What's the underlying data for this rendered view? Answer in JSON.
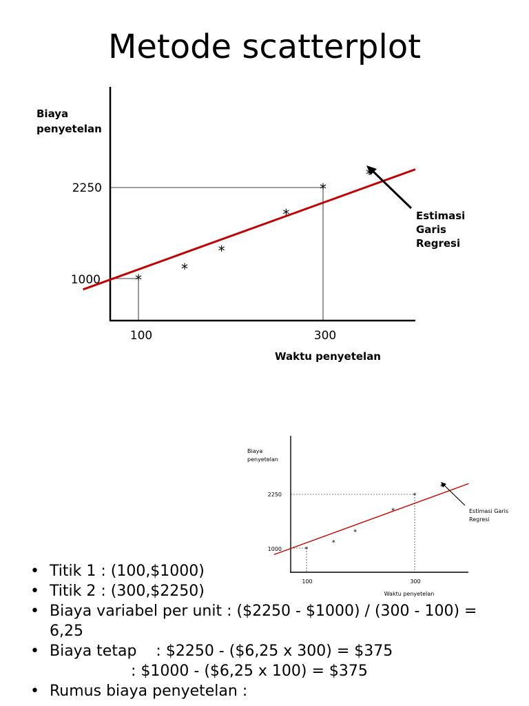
{
  "slide": {
    "title": "Metode scatterplot"
  },
  "chart_data": [
    {
      "type": "scatter",
      "ylabel": "Biaya penyetelan",
      "ylabel_lines": [
        "Biaya",
        "penyetelan"
      ],
      "xlabel": "Waktu penyetelan",
      "x_ticks": [
        "100",
        "300"
      ],
      "y_ticks": [
        "2250",
        "1000"
      ],
      "points": [
        [
          100,
          1000
        ],
        [
          150,
          1150
        ],
        [
          190,
          1400
        ],
        [
          260,
          1900
        ],
        [
          300,
          2250
        ],
        [
          350,
          2450
        ]
      ],
      "regression_line": {
        "from": [
          40,
          850
        ],
        "to": [
          400,
          2500
        ]
      },
      "annotation": "Estimasi Garis Regresi",
      "annotation_lines": [
        "Estimasi",
        "Garis",
        "Regresi"
      ],
      "line_color": "#c00000"
    },
    {
      "type": "scatter",
      "ylabel_lines": [
        "Biaya",
        "penyetelan"
      ],
      "xlabel": "Waktu penyetelan",
      "x_ticks": [
        "100",
        "300"
      ],
      "y_ticks": [
        "2250",
        "1000"
      ],
      "annotation_lines": [
        "Estimasi Garis",
        "Regresi"
      ],
      "line_color": "#c00000"
    }
  ],
  "bullets": {
    "b1": "Titik 1 : (100,$1000)",
    "b2": "Titik 2 : (300,$2250)",
    "b3": "Biaya variabel per unit : ($2250 - $1000) / (300 - 100) = 6,25",
    "b4_label": "Biaya tetap",
    "b4_value": ": $2250 - ($6,25 x 300) = $375",
    "b4_cont": ": $1000 - ($6,25 x 100) = $375",
    "b5": "Rumus biaya penyetelan :"
  }
}
